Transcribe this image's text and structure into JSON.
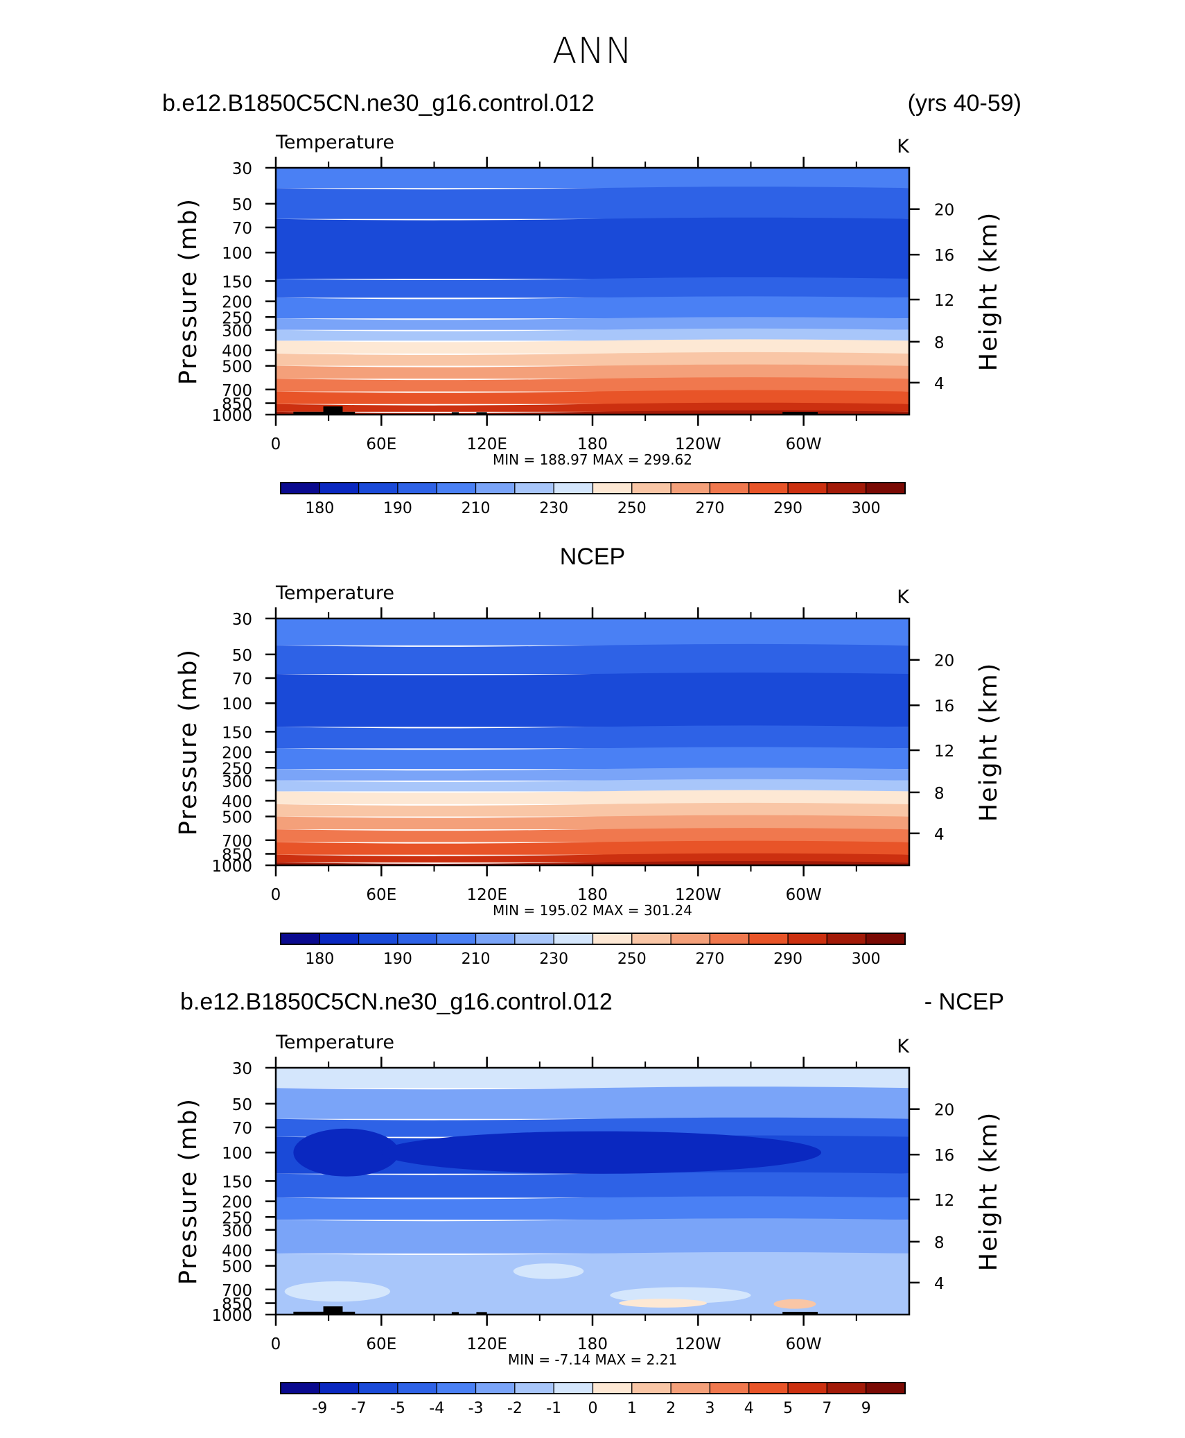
{
  "figure": {
    "title": "ANN",
    "top_left_title": "b.e12.B1850C5CN.ne30_g16.control.012",
    "top_right_title": "(yrs 40-59)",
    "middle_title": "NCEP",
    "bottom_left_title": "b.e12.B1850C5CN.ne30_g16.control.012",
    "bottom_right_title": "- NCEP"
  },
  "chart_data": [
    {
      "type": "heatmap",
      "panel": "model",
      "variable_label": "Temperature",
      "units_label": "K",
      "ylabel": "Pressure (mb)",
      "y2label": "Height (km)",
      "x_ticks": [
        "0",
        "60E",
        "120E",
        "180",
        "120W",
        "60W"
      ],
      "y_ticks": [
        "30",
        "50",
        "70",
        "100",
        "150",
        "200",
        "250",
        "300",
        "400",
        "500",
        "700",
        "850",
        "1000"
      ],
      "y2_ticks": [
        "20",
        "16",
        "12",
        "8",
        "4"
      ],
      "stats": "MIN = 188.97   MAX = 299.62",
      "min": 188.97,
      "max": 299.62,
      "colorbar_labels": [
        "180",
        "190",
        "210",
        "230",
        "250",
        "270",
        "290",
        "300"
      ],
      "colors": [
        "#0a0a8f",
        "#0a28c0",
        "#1a4ad8",
        "#2e62e6",
        "#4a80f4",
        "#7aa4f8",
        "#a8c6fa",
        "#d4e6fc",
        "#fde8d4",
        "#f9c6a6",
        "#f4a07a",
        "#f0784e",
        "#e85428",
        "#cc3010",
        "#a21a08",
        "#7a0a04"
      ],
      "bands": [
        {
          "p_top": 30,
          "p_bot": 40,
          "color_index": 4
        },
        {
          "p_top": 40,
          "p_bot": 62,
          "color_index": 3
        },
        {
          "p_top": 62,
          "p_bot": 145,
          "color_index": 2
        },
        {
          "p_top": 145,
          "p_bot": 190,
          "color_index": 3
        },
        {
          "p_top": 190,
          "p_bot": 255,
          "color_index": 4
        },
        {
          "p_top": 255,
          "p_bot": 300,
          "color_index": 5
        },
        {
          "p_top": 300,
          "p_bot": 350,
          "color_index": 6
        },
        {
          "p_top": 350,
          "p_bot": 420,
          "color_index": 8
        },
        {
          "p_top": 420,
          "p_bot": 500,
          "color_index": 9
        },
        {
          "p_top": 500,
          "p_bot": 600,
          "color_index": 10
        },
        {
          "p_top": 600,
          "p_bot": 720,
          "color_index": 11
        },
        {
          "p_top": 720,
          "p_bot": 860,
          "color_index": 12
        },
        {
          "p_top": 860,
          "p_bot": 960,
          "color_index": 13
        },
        {
          "p_top": 960,
          "p_bot": 1000,
          "color_index": 14
        }
      ],
      "topography": [
        {
          "lon_start": 10,
          "lon_end": 45,
          "p_top": 960
        },
        {
          "lon_start": 27,
          "lon_end": 38,
          "p_top": 890
        },
        {
          "lon_start": 100,
          "lon_end": 104,
          "p_top": 965
        },
        {
          "lon_start": 114,
          "lon_end": 120,
          "p_top": 965
        },
        {
          "lon_start": 288,
          "lon_end": 308,
          "p_top": 962
        }
      ]
    },
    {
      "type": "heatmap",
      "panel": "ncep",
      "variable_label": "Temperature",
      "units_label": "K",
      "ylabel": "Pressure (mb)",
      "y2label": "Height (km)",
      "x_ticks": [
        "0",
        "60E",
        "120E",
        "180",
        "120W",
        "60W"
      ],
      "y_ticks": [
        "30",
        "50",
        "70",
        "100",
        "150",
        "200",
        "250",
        "300",
        "400",
        "500",
        "700",
        "850",
        "1000"
      ],
      "y2_ticks": [
        "20",
        "16",
        "12",
        "8",
        "4"
      ],
      "stats": "MIN = 195.02   MAX = 301.24",
      "min": 195.02,
      "max": 301.24,
      "colorbar_labels": [
        "180",
        "190",
        "210",
        "230",
        "250",
        "270",
        "290",
        "300"
      ],
      "colors": [
        "#0a0a8f",
        "#0a28c0",
        "#1a4ad8",
        "#2e62e6",
        "#4a80f4",
        "#7aa4f8",
        "#a8c6fa",
        "#d4e6fc",
        "#fde8d4",
        "#f9c6a6",
        "#f4a07a",
        "#f0784e",
        "#e85428",
        "#cc3010",
        "#a21a08",
        "#7a0a04"
      ],
      "bands": [
        {
          "p_top": 30,
          "p_bot": 44,
          "color_index": 4
        },
        {
          "p_top": 44,
          "p_bot": 66,
          "color_index": 3
        },
        {
          "p_top": 66,
          "p_bot": 140,
          "color_index": 2
        },
        {
          "p_top": 140,
          "p_bot": 190,
          "color_index": 3
        },
        {
          "p_top": 190,
          "p_bot": 255,
          "color_index": 4
        },
        {
          "p_top": 255,
          "p_bot": 300,
          "color_index": 5
        },
        {
          "p_top": 300,
          "p_bot": 350,
          "color_index": 6
        },
        {
          "p_top": 350,
          "p_bot": 420,
          "color_index": 8
        },
        {
          "p_top": 420,
          "p_bot": 500,
          "color_index": 9
        },
        {
          "p_top": 500,
          "p_bot": 600,
          "color_index": 10
        },
        {
          "p_top": 600,
          "p_bot": 720,
          "color_index": 11
        },
        {
          "p_top": 720,
          "p_bot": 860,
          "color_index": 12
        },
        {
          "p_top": 860,
          "p_bot": 960,
          "color_index": 13
        },
        {
          "p_top": 960,
          "p_bot": 1000,
          "color_index": 14
        }
      ],
      "topography": []
    },
    {
      "type": "heatmap",
      "panel": "difference",
      "variable_label": "Temperature",
      "units_label": "K",
      "ylabel": "Pressure (mb)",
      "y2label": "Height (km)",
      "x_ticks": [
        "0",
        "60E",
        "120E",
        "180",
        "120W",
        "60W"
      ],
      "y_ticks": [
        "30",
        "50",
        "70",
        "100",
        "150",
        "200",
        "250",
        "300",
        "400",
        "500",
        "700",
        "850",
        "1000"
      ],
      "y2_ticks": [
        "20",
        "16",
        "12",
        "8",
        "4"
      ],
      "stats": "MIN =    -7.14   MAX =      2.21",
      "min": -7.14,
      "max": 2.21,
      "colorbar_labels": [
        "-9",
        "-7",
        "-5",
        "-4",
        "-3",
        "-2",
        "-1",
        "0",
        "1",
        "2",
        "3",
        "4",
        "5",
        "7",
        "9"
      ],
      "colors": [
        "#0a0a8f",
        "#0a28c0",
        "#1a4ad8",
        "#2e62e6",
        "#4a80f4",
        "#7aa4f8",
        "#a8c6fa",
        "#d4e6fc",
        "#fde8d4",
        "#f9c6a6",
        "#f4a07a",
        "#f0784e",
        "#e85428",
        "#cc3010",
        "#a21a08",
        "#7a0a04"
      ],
      "bands": [
        {
          "p_top": 30,
          "p_bot": 40,
          "color_index": 7
        },
        {
          "p_top": 40,
          "p_bot": 62,
          "color_index": 5
        },
        {
          "p_top": 62,
          "p_bot": 80,
          "color_index": 3
        },
        {
          "p_top": 80,
          "p_bot": 135,
          "color_index": 2
        },
        {
          "p_top": 135,
          "p_bot": 190,
          "color_index": 3
        },
        {
          "p_top": 190,
          "p_bot": 260,
          "color_index": 4
        },
        {
          "p_top": 260,
          "p_bot": 420,
          "color_index": 5
        },
        {
          "p_top": 420,
          "p_bot": 1000,
          "color_index": 6
        }
      ],
      "patches": [
        {
          "lon_c": 40,
          "lon_w": 30,
          "p": 100,
          "dp": 35,
          "color_index": 1
        },
        {
          "lon_c": 185,
          "lon_w": 125,
          "p": 100,
          "dp": 30,
          "color_index": 1
        },
        {
          "lon_c": 155,
          "lon_w": 20,
          "p": 540,
          "dp": 40,
          "color_index": 7
        },
        {
          "lon_c": 230,
          "lon_w": 40,
          "p": 760,
          "dp": 60,
          "color_index": 7
        },
        {
          "lon_c": 35,
          "lon_w": 30,
          "p": 720,
          "dp": 80,
          "color_index": 7
        },
        {
          "lon_c": 220,
          "lon_w": 25,
          "p": 850,
          "dp": 20,
          "color_index": 8
        },
        {
          "lon_c": 295,
          "lon_w": 12,
          "p": 860,
          "dp": 25,
          "color_index": 9
        }
      ],
      "topography": [
        {
          "lon_start": 10,
          "lon_end": 45,
          "p_top": 960
        },
        {
          "lon_start": 27,
          "lon_end": 38,
          "p_top": 890
        },
        {
          "lon_start": 100,
          "lon_end": 104,
          "p_top": 965
        },
        {
          "lon_start": 114,
          "lon_end": 120,
          "p_top": 965
        },
        {
          "lon_start": 288,
          "lon_end": 308,
          "p_top": 962
        }
      ]
    }
  ]
}
